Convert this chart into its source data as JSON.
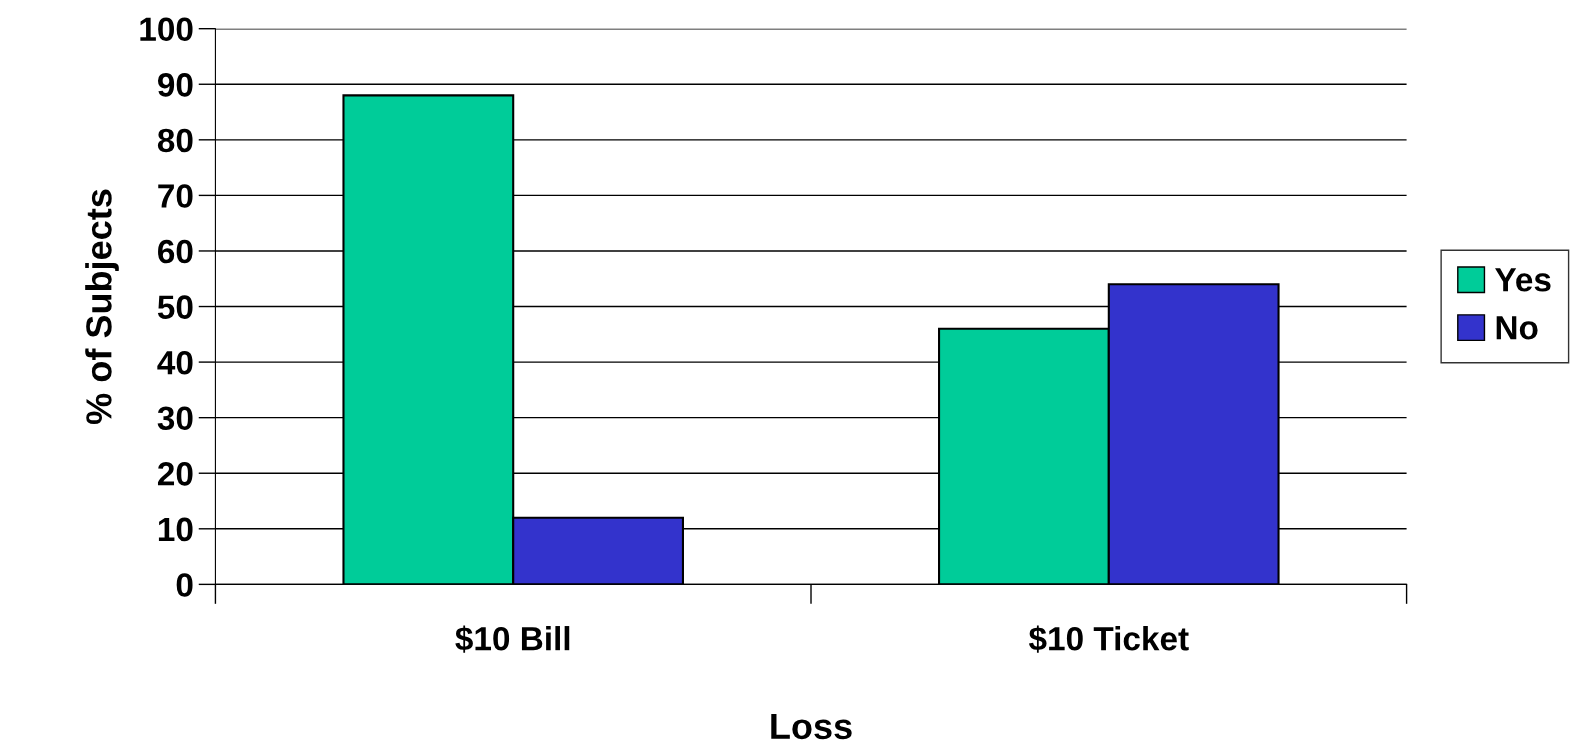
{
  "chart_data": {
    "type": "bar",
    "xlabel": "Loss",
    "ylabel": "% of Subjects",
    "categories": [
      "$10 Bill",
      "$10 Ticket"
    ],
    "series": [
      {
        "name": "Yes",
        "color": "#00cc99",
        "values": [
          88,
          46
        ]
      },
      {
        "name": "No",
        "color": "#3333cc",
        "values": [
          12,
          54
        ]
      }
    ],
    "ylim": [
      0,
      100
    ],
    "yticks": [
      0,
      10,
      20,
      30,
      40,
      50,
      60,
      70,
      80,
      90,
      100
    ],
    "grid": "y",
    "legend": "right"
  }
}
